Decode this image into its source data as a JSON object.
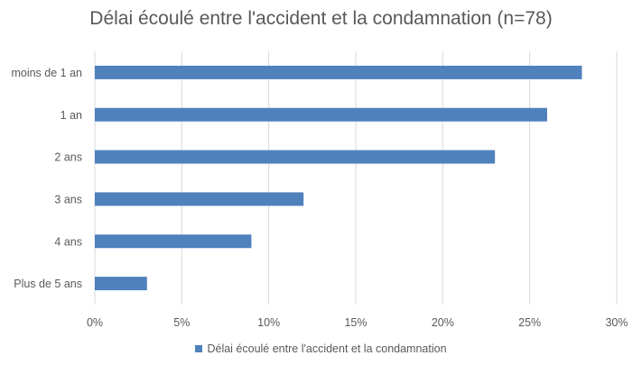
{
  "chart_data": {
    "type": "bar",
    "orientation": "horizontal",
    "title": "Délai écoulé entre l'accident et la condamnation  (n=78)",
    "categories": [
      "moins de 1 an",
      "1 an",
      "2 ans",
      "3 ans",
      "4 ans",
      "Plus de 5 ans"
    ],
    "series": [
      {
        "name": "Délai écoulé entre l'accident et la condamnation",
        "values": [
          28,
          26,
          23,
          12,
          9,
          3
        ]
      }
    ],
    "x_ticks": [
      "0%",
      "5%",
      "10%",
      "15%",
      "20%",
      "25%",
      "30%"
    ],
    "xlim": [
      0,
      30
    ],
    "xlabel": "",
    "ylabel": "",
    "grid": "vertical",
    "legend_position": "bottom",
    "bar_color": "#4f81bd"
  }
}
